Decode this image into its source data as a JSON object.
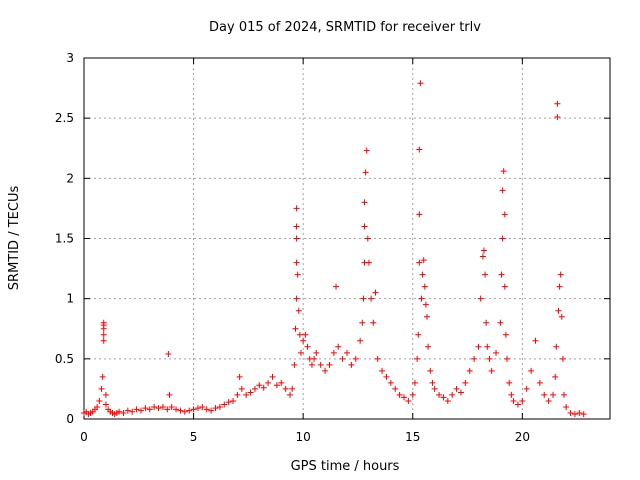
{
  "chart_data": {
    "type": "scatter",
    "title": "Day 015 of 2024, SRMTID for receiver trlv",
    "xlabel": "GPS time / hours",
    "ylabel": "SRMTID / TECUs",
    "xlim": [
      0,
      24
    ],
    "ylim": [
      0,
      3
    ],
    "xticks": [
      0,
      5,
      10,
      15,
      20
    ],
    "xtick_labels": [
      "0",
      "5",
      "10",
      "15",
      "20"
    ],
    "yticks": [
      0,
      0.5,
      1,
      1.5,
      2,
      2.5,
      3
    ],
    "ytick_labels": [
      "0",
      "0.5",
      "1",
      "1.5",
      "2",
      "2.5",
      "3"
    ],
    "grid": true,
    "marker": "+",
    "color": "#ff0000",
    "series": [
      {
        "name": "SRMTID",
        "x": [
          0.0,
          0.1,
          0.2,
          0.3,
          0.4,
          0.5,
          0.6,
          0.7,
          0.8,
          0.85,
          0.9,
          0.9,
          0.9,
          0.9,
          0.9,
          1.0,
          1.0,
          1.1,
          1.2,
          1.3,
          1.4,
          1.5,
          1.6,
          1.8,
          2.0,
          2.2,
          2.4,
          2.6,
          2.8,
          3.0,
          3.2,
          3.4,
          3.6,
          3.8,
          3.85,
          3.9,
          4.0,
          4.2,
          4.4,
          4.6,
          4.8,
          5.0,
          5.2,
          5.4,
          5.6,
          5.8,
          6.0,
          6.2,
          6.4,
          6.6,
          6.8,
          7.0,
          7.1,
          7.2,
          7.4,
          7.6,
          7.8,
          8.0,
          8.2,
          8.4,
          8.6,
          8.8,
          9.0,
          9.2,
          9.4,
          9.5,
          9.6,
          9.65,
          9.7,
          9.7,
          9.7,
          9.7,
          9.7,
          9.75,
          9.8,
          9.85,
          9.9,
          10.0,
          10.1,
          10.2,
          10.3,
          10.4,
          10.5,
          10.6,
          10.8,
          11.0,
          11.2,
          11.4,
          11.5,
          11.6,
          11.8,
          12.0,
          12.2,
          12.4,
          12.6,
          12.7,
          12.75,
          12.8,
          12.8,
          12.8,
          12.85,
          12.9,
          12.95,
          13.0,
          13.1,
          13.2,
          13.3,
          13.4,
          13.6,
          13.8,
          14.0,
          14.2,
          14.4,
          14.6,
          14.8,
          15.0,
          15.1,
          15.2,
          15.25,
          15.3,
          15.3,
          15.3,
          15.35,
          15.4,
          15.45,
          15.5,
          15.55,
          15.6,
          15.65,
          15.7,
          15.8,
          15.9,
          16.0,
          16.2,
          16.4,
          16.6,
          16.8,
          17.0,
          17.2,
          17.4,
          17.6,
          17.8,
          18.0,
          18.1,
          18.2,
          18.25,
          18.3,
          18.35,
          18.4,
          18.5,
          18.6,
          18.8,
          19.0,
          19.05,
          19.1,
          19.1,
          19.15,
          19.2,
          19.2,
          19.25,
          19.3,
          19.4,
          19.5,
          19.6,
          19.8,
          20.0,
          20.2,
          20.4,
          20.6,
          20.8,
          21.0,
          21.2,
          21.4,
          21.5,
          21.55,
          21.6,
          21.6,
          21.65,
          21.7,
          21.75,
          21.8,
          21.85,
          21.9,
          22.0,
          22.2,
          22.4,
          22.6,
          22.8
        ],
        "y": [
          0.05,
          0.06,
          0.04,
          0.05,
          0.06,
          0.08,
          0.1,
          0.15,
          0.25,
          0.35,
          0.65,
          0.7,
          0.75,
          0.78,
          0.8,
          0.2,
          0.12,
          0.08,
          0.06,
          0.05,
          0.04,
          0.05,
          0.06,
          0.05,
          0.07,
          0.06,
          0.08,
          0.07,
          0.09,
          0.08,
          0.1,
          0.09,
          0.1,
          0.08,
          0.54,
          0.2,
          0.1,
          0.08,
          0.07,
          0.06,
          0.07,
          0.08,
          0.09,
          0.1,
          0.08,
          0.07,
          0.09,
          0.1,
          0.12,
          0.14,
          0.15,
          0.2,
          0.35,
          0.25,
          0.2,
          0.22,
          0.25,
          0.28,
          0.26,
          0.3,
          0.35,
          0.28,
          0.3,
          0.25,
          0.2,
          0.25,
          0.45,
          0.75,
          1.0,
          1.3,
          1.5,
          1.6,
          1.75,
          1.2,
          0.9,
          0.7,
          0.55,
          0.65,
          0.7,
          0.6,
          0.5,
          0.45,
          0.5,
          0.55,
          0.45,
          0.4,
          0.45,
          0.55,
          1.1,
          0.6,
          0.5,
          0.55,
          0.45,
          0.5,
          0.65,
          0.8,
          1.0,
          1.3,
          1.6,
          1.8,
          2.05,
          2.23,
          1.5,
          1.3,
          1.0,
          0.8,
          1.05,
          0.5,
          0.4,
          0.35,
          0.3,
          0.25,
          0.2,
          0.18,
          0.15,
          0.2,
          0.3,
          0.5,
          0.7,
          1.3,
          1.7,
          2.24,
          2.79,
          1.0,
          1.2,
          1.32,
          1.1,
          0.95,
          0.85,
          0.6,
          0.4,
          0.3,
          0.25,
          0.2,
          0.18,
          0.15,
          0.2,
          0.25,
          0.22,
          0.3,
          0.4,
          0.5,
          0.6,
          1.0,
          1.35,
          1.4,
          1.2,
          0.8,
          0.6,
          0.5,
          0.4,
          0.55,
          0.8,
          1.2,
          1.5,
          1.9,
          2.06,
          1.7,
          1.1,
          0.7,
          0.5,
          0.3,
          0.2,
          0.15,
          0.12,
          0.15,
          0.25,
          0.4,
          0.65,
          0.3,
          0.2,
          0.15,
          0.2,
          0.35,
          0.6,
          2.51,
          2.62,
          0.9,
          1.1,
          1.2,
          0.85,
          0.5,
          0.2,
          0.1,
          0.05,
          0.04,
          0.05,
          0.04
        ]
      }
    ]
  }
}
